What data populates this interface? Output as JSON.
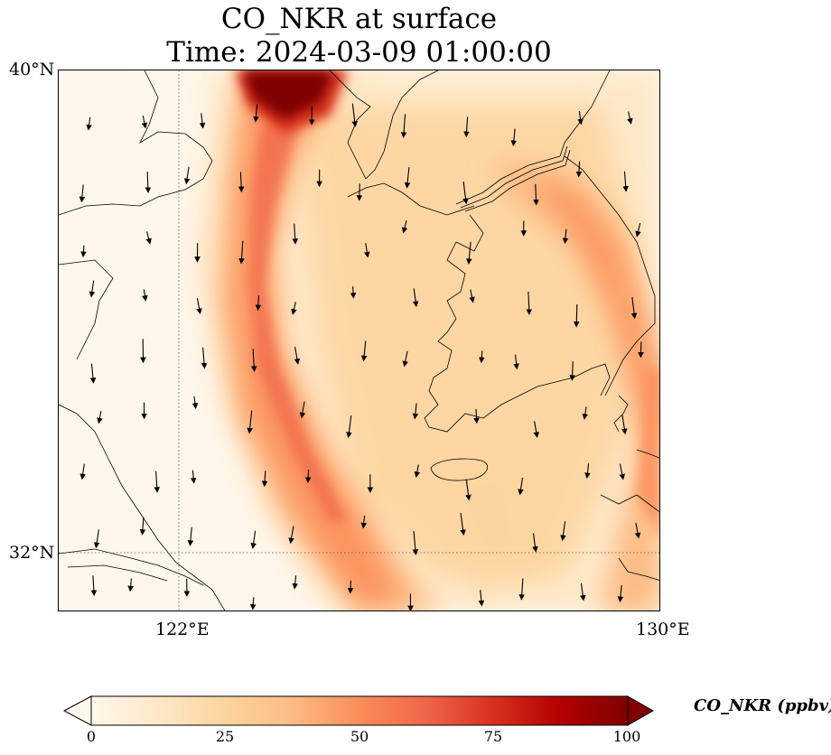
{
  "title": {
    "line1": "CO_NKR at surface",
    "line2": "Time: 2024-03-09 01:00:00"
  },
  "axes": {
    "lat_ticks": [
      "40°N",
      "32°N"
    ],
    "lon_ticks": [
      "122°E",
      "130°E"
    ],
    "lon_range": [
      120,
      130
    ],
    "lat_range": [
      31,
      40
    ],
    "gridlines": "dotted"
  },
  "colorbar": {
    "label": "CO_NKR (ppbv)",
    "ticks": [
      "0",
      "25",
      "50",
      "75",
      "100"
    ],
    "range": [
      0,
      100
    ],
    "extend": "both",
    "colormap": [
      "#fff7ec",
      "#fee8c8",
      "#fdd49e",
      "#fdbb84",
      "#fc8d59",
      "#ef6548",
      "#d7301f",
      "#b30000",
      "#7f0000"
    ]
  },
  "map": {
    "variable": "CO_NKR",
    "level": "surface",
    "wind_arrows": "southward",
    "plume": "high CO band curving from northwest down to south, second band over eastern peninsula"
  }
}
